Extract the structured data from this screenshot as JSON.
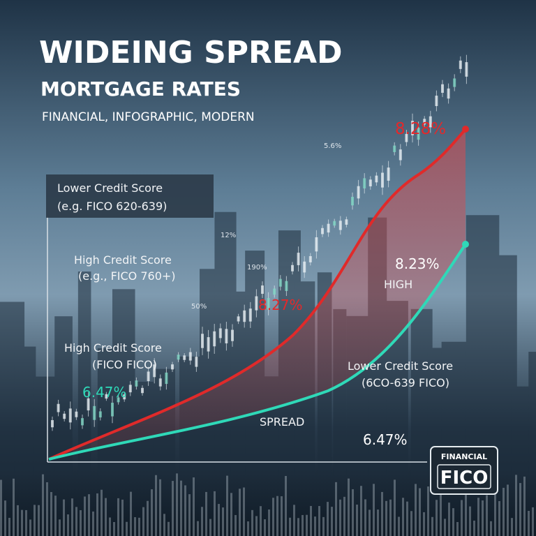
{
  "header": {
    "title": "WIDEING SPREAD",
    "subtitle": "MORTGAGE RATES",
    "tags": "FINANCIAL, INFOGRAPHIC, MODERN"
  },
  "labels": {
    "box": [
      "Lower Credit Score",
      "(e.g. FICO 620-639)"
    ],
    "high_credit_top": [
      "High Credit Score",
      "(e.g., FICO 760+)"
    ],
    "high_credit_bottom": [
      "High Credit Score",
      "(FICO FICO)"
    ],
    "lower_credit": [
      "Lower Credit Score",
      "(6CO-639 FICO)"
    ],
    "high": "HIGH",
    "spread": "SPREAD"
  },
  "rates": {
    "red_top": "8.28%",
    "red_mid": "8.27%",
    "green_end": "8.23%",
    "green_start": "6.47%",
    "bottom": "6.47%"
  },
  "chart_tags": [
    "5.6%",
    "12%",
    "190%",
    "50%"
  ],
  "badge": {
    "top": "FINANCIAL",
    "main": "FICO"
  }
}
